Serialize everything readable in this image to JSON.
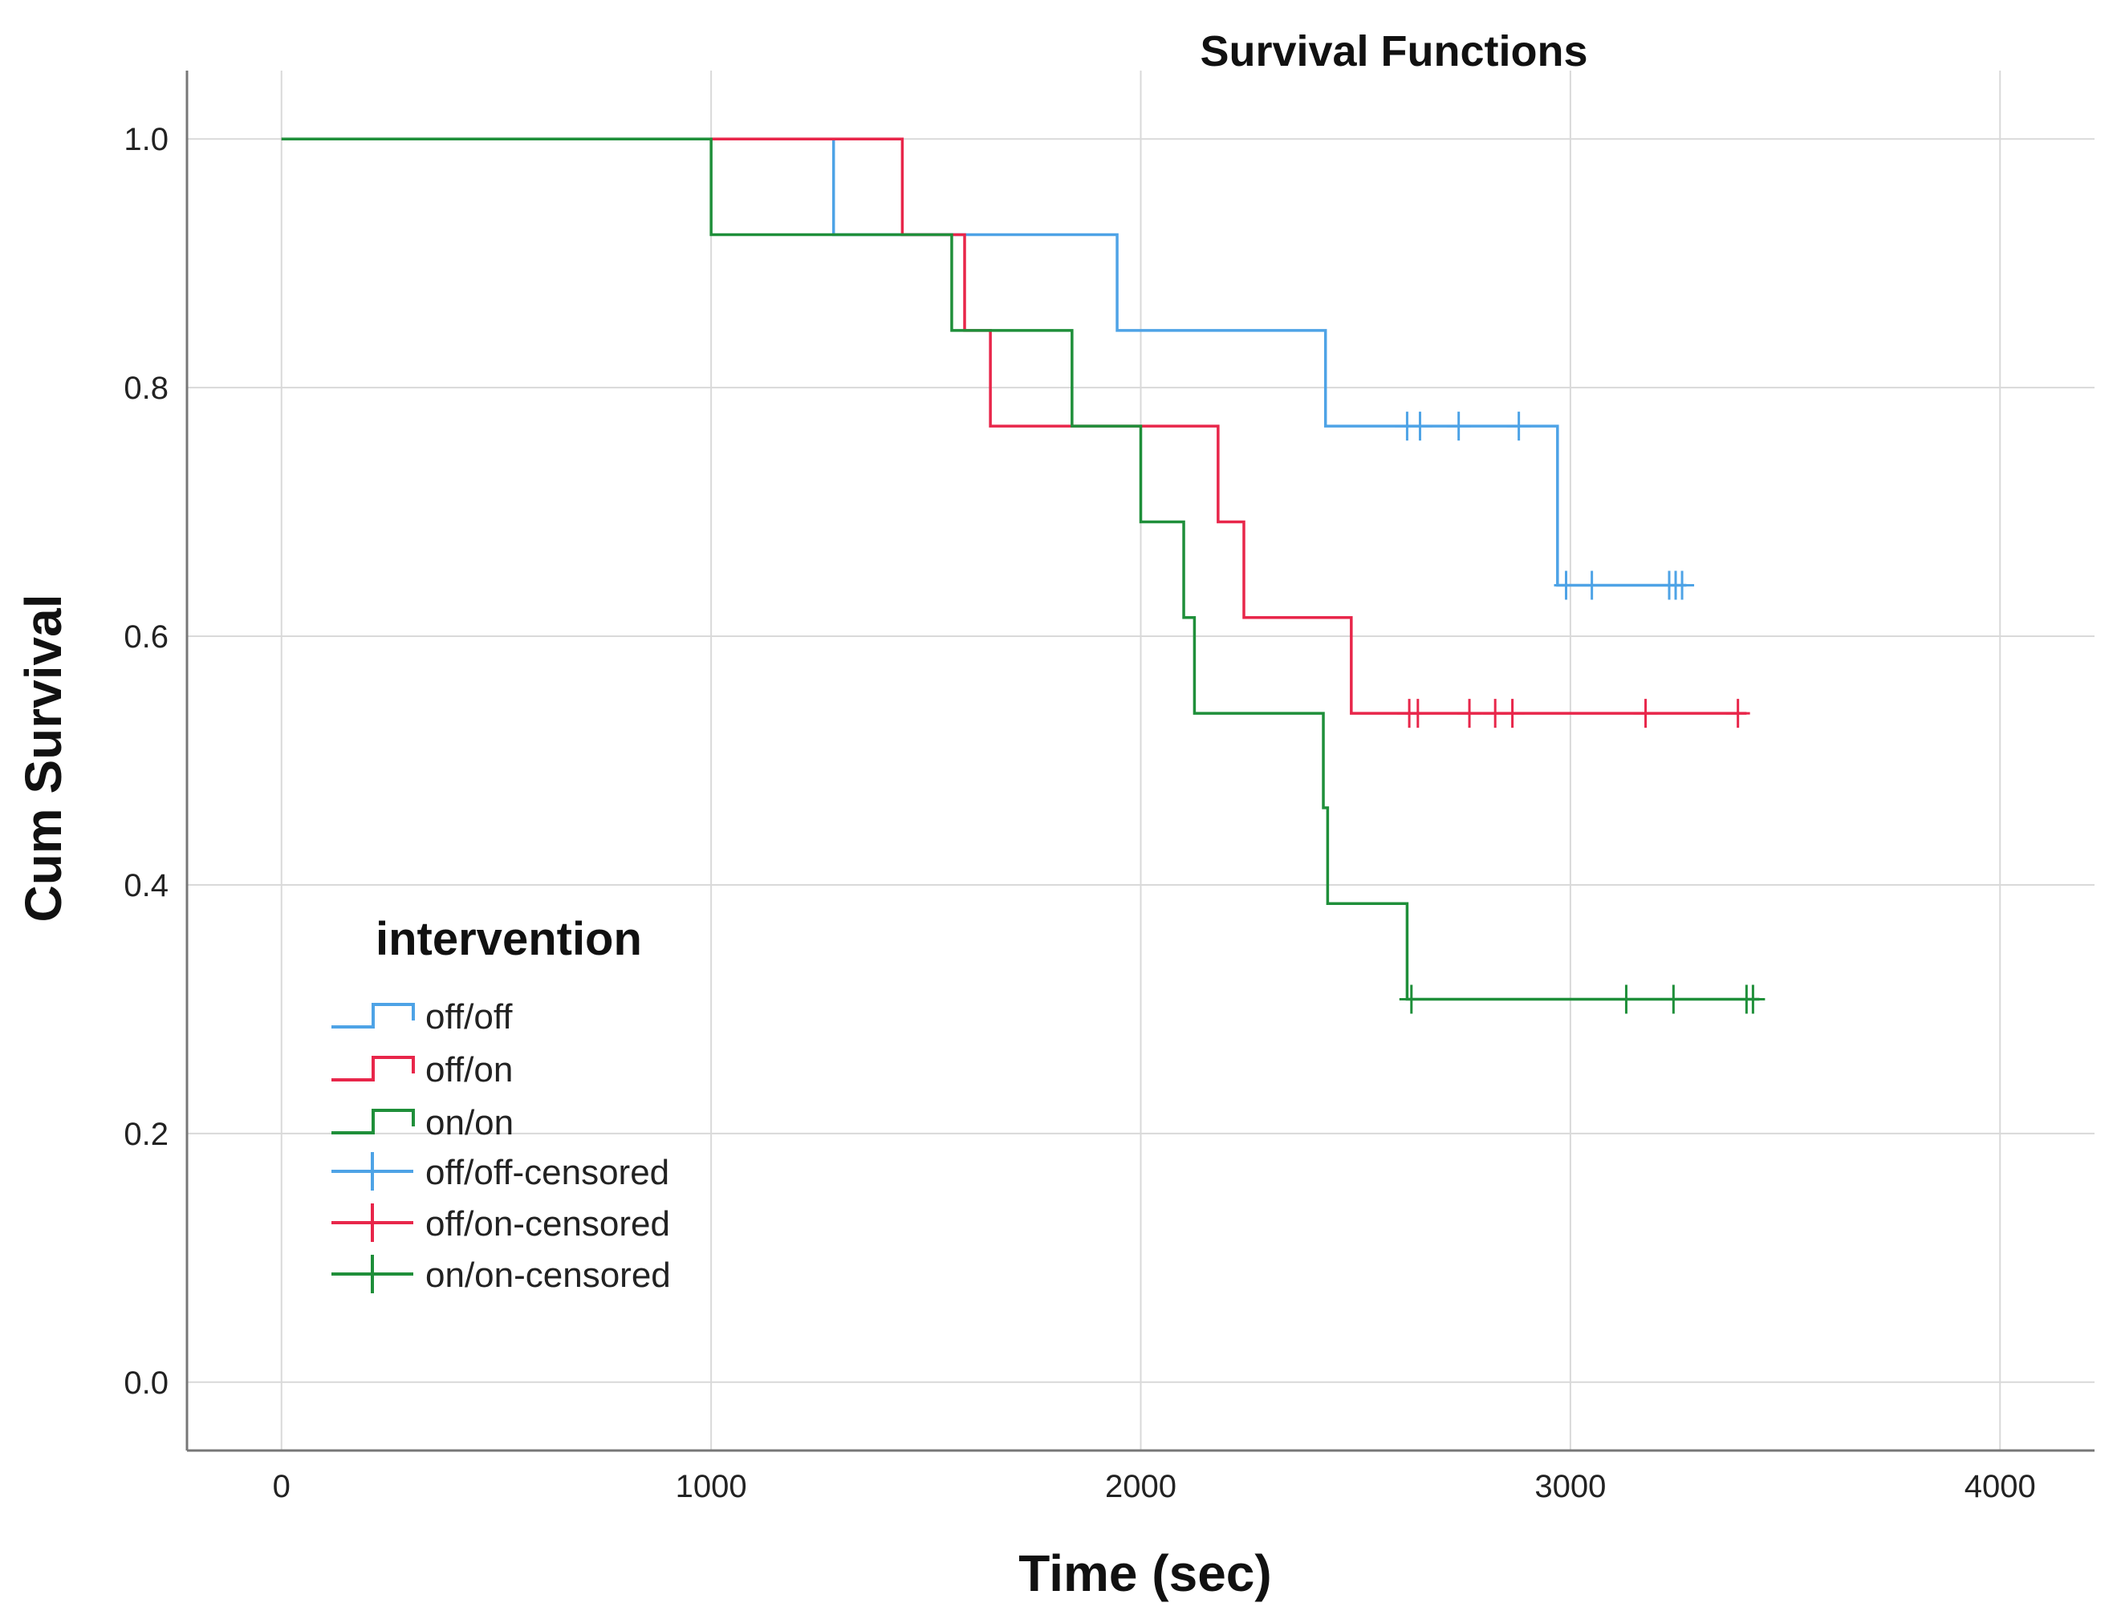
{
  "chart_data": {
    "type": "line",
    "subtype": "kaplan-meier step",
    "title": "Survival Functions",
    "xlabel": "Time (sec)",
    "ylabel": "Cum Survival",
    "xlim": [
      -220,
      4220
    ],
    "ylim": [
      -0.055,
      1.055
    ],
    "x_ticks": [
      0,
      1000,
      2000,
      3000,
      4000
    ],
    "x_tick_labels": [
      "0",
      "1000",
      "2000",
      "3000",
      "4000"
    ],
    "y_ticks": [
      0.0,
      0.2,
      0.4,
      0.6,
      0.8,
      1.0
    ],
    "y_tick_labels": [
      "0.0",
      "0.2",
      "0.4",
      "0.6",
      "0.8",
      "1.0"
    ],
    "grid": true,
    "legend_title": "intervention",
    "legend_position": "bottom-left",
    "series": [
      {
        "name": "off/off",
        "color": "#4ea3e6",
        "steps": [
          [
            0,
            1.0
          ],
          [
            1285,
            0.923
          ],
          [
            1945,
            0.846
          ],
          [
            2430,
            0.769
          ],
          [
            2970,
            0.641
          ]
        ],
        "end_x": 3270,
        "censored_name": "off/off-censored",
        "censored": [
          [
            2620,
            0.769
          ],
          [
            2650,
            0.769
          ],
          [
            2740,
            0.769
          ],
          [
            2880,
            0.769
          ],
          [
            2990,
            0.641
          ],
          [
            3050,
            0.641
          ],
          [
            3230,
            0.641
          ],
          [
            3245,
            0.641
          ],
          [
            3260,
            0.641
          ]
        ]
      },
      {
        "name": "off/on",
        "color": "#e8264a",
        "steps": [
          [
            0,
            1.0
          ],
          [
            1445,
            0.923
          ],
          [
            1590,
            0.846
          ],
          [
            1650,
            0.769
          ],
          [
            2180,
            0.692
          ],
          [
            2240,
            0.615
          ],
          [
            2490,
            0.538
          ]
        ],
        "end_x": 3410,
        "censored_name": "off/on-censored",
        "censored": [
          [
            2625,
            0.538
          ],
          [
            2645,
            0.538
          ],
          [
            2765,
            0.538
          ],
          [
            2825,
            0.538
          ],
          [
            2865,
            0.538
          ],
          [
            3175,
            0.538
          ],
          [
            3390,
            0.538
          ]
        ]
      },
      {
        "name": "on/on",
        "color": "#1f8f3a",
        "steps": [
          [
            0,
            1.0
          ],
          [
            1000,
            0.923
          ],
          [
            1560,
            0.846
          ],
          [
            1840,
            0.769
          ],
          [
            2000,
            0.692
          ],
          [
            2100,
            0.615
          ],
          [
            2125,
            0.538
          ],
          [
            2425,
            0.462
          ],
          [
            2435,
            0.385
          ],
          [
            2620,
            0.308
          ]
        ],
        "end_x": 3440,
        "censored_name": "on/on-censored",
        "censored": [
          [
            2630,
            0.308
          ],
          [
            3130,
            0.308
          ],
          [
            3240,
            0.308
          ],
          [
            3410,
            0.308
          ],
          [
            3425,
            0.308
          ]
        ]
      }
    ]
  }
}
